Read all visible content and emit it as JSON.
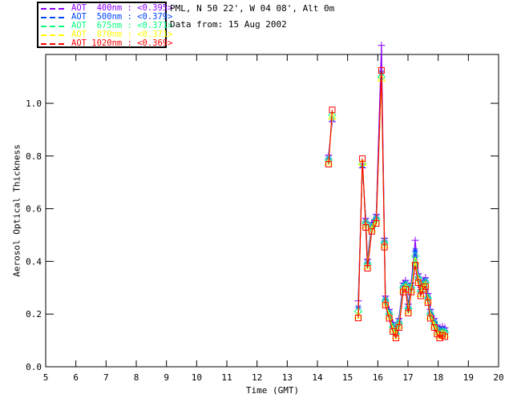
{
  "header": {
    "site": "PML, N 50 22', W 04 08', Alt 0m",
    "date": "Data from: 15 Aug 2002"
  },
  "legend": {
    "entries": [
      {
        "label": "AOT  400nm : <0.395>",
        "wavelength_nm": 400,
        "mean_aot": 0.395,
        "color": "#8B00FF",
        "marker": "plus"
      },
      {
        "label": "AOT  500nm : <0.379>",
        "wavelength_nm": 500,
        "mean_aot": 0.379,
        "color": "#0044FF",
        "marker": "asterisk"
      },
      {
        "label": "AOT  675nm : <0.371>",
        "wavelength_nm": 675,
        "mean_aot": 0.371,
        "color": "#00FF7F",
        "marker": "diamond"
      },
      {
        "label": "AOT  870nm : <0.371>",
        "wavelength_nm": 870,
        "mean_aot": 0.371,
        "color": "#FFFF00",
        "marker": "triangle"
      },
      {
        "label": "AOT 1020nm : <0.369>",
        "wavelength_nm": 1020,
        "mean_aot": 0.369,
        "color": "#FF0000",
        "marker": "square"
      }
    ]
  },
  "chart_data": {
    "type": "line",
    "title": "",
    "xlabel": "Time (GMT)",
    "ylabel": "Aerosol Optical Thickness",
    "xlim": [
      5,
      20
    ],
    "ylim": [
      0.0,
      1.185
    ],
    "x_ticks": [
      5,
      6,
      7,
      8,
      9,
      10,
      11,
      12,
      13,
      14,
      15,
      16,
      17,
      18,
      19,
      20
    ],
    "y_ticks": [
      "0.0",
      "0.2",
      "0.4",
      "0.6",
      "0.8",
      "1.0"
    ],
    "grid": false,
    "legend_position": "top-left",
    "points_t_gmt_and_aot": [
      [
        14.37,
        0.785
      ],
      [
        14.49,
        0.945
      ],
      [
        15.35,
        0.21
      ],
      [
        15.49,
        0.78
      ],
      [
        15.6,
        0.545
      ],
      [
        15.66,
        0.39
      ],
      [
        15.8,
        0.53
      ],
      [
        15.95,
        0.56
      ],
      [
        16.12,
        1.105
      ],
      [
        16.22,
        0.47
      ],
      [
        16.25,
        0.25
      ],
      [
        16.38,
        0.2
      ],
      [
        16.5,
        0.15
      ],
      [
        16.6,
        0.125
      ],
      [
        16.7,
        0.165
      ],
      [
        16.84,
        0.3
      ],
      [
        16.92,
        0.31
      ],
      [
        17.01,
        0.22
      ],
      [
        17.11,
        0.3
      ],
      [
        17.24,
        0.42
      ],
      [
        17.34,
        0.335
      ],
      [
        17.42,
        0.285
      ],
      [
        17.5,
        0.31
      ],
      [
        17.58,
        0.32
      ],
      [
        17.66,
        0.26
      ],
      [
        17.74,
        0.2
      ],
      [
        17.87,
        0.165
      ],
      [
        17.97,
        0.14
      ],
      [
        18.05,
        0.125
      ],
      [
        18.14,
        0.135
      ],
      [
        18.22,
        0.13
      ]
    ],
    "gap_after_indices": [
      1
    ],
    "series": [
      {
        "name": "AOT 400nm",
        "color": "#8B00FF",
        "marker": "plus",
        "offset": 0.018,
        "overrides": {
          "1": 0.93,
          "2": 0.25,
          "3": 0.755,
          "8": 1.22,
          "19": 0.48
        }
      },
      {
        "name": "AOT 500nm",
        "color": "#0044FF",
        "marker": "asterisk",
        "offset": 0.008,
        "overrides": {
          "1": 0.94,
          "2": 0.225,
          "3": 0.765,
          "8": 1.115,
          "19": 0.44
        }
      },
      {
        "name": "AOT 675nm",
        "color": "#00FF7F",
        "marker": "diamond",
        "offset": 0.0,
        "overrides": {
          "1": 0.955,
          "2": 0.21,
          "3": 0.77,
          "8": 1.1,
          "19": 0.42
        }
      },
      {
        "name": "AOT 870nm",
        "color": "#FFFF00",
        "marker": "triangle",
        "offset": -0.008,
        "overrides": {
          "1": 0.95,
          "2": 0.195,
          "3": 0.775,
          "8": 1.095,
          "19": 0.4
        }
      },
      {
        "name": "AOT 1020nm",
        "color": "#FF0000",
        "marker": "square",
        "offset": -0.016,
        "overrides": {
          "1": 0.975,
          "2": 0.185,
          "3": 0.79,
          "8": 1.125,
          "19": 0.385
        }
      }
    ]
  }
}
